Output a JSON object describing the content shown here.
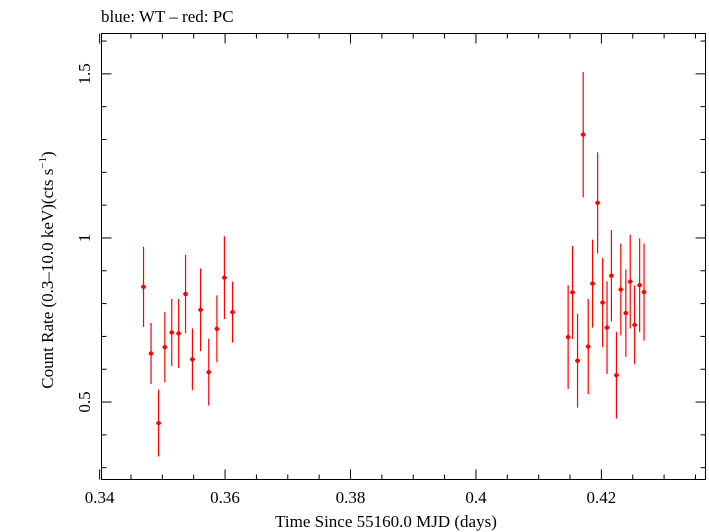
{
  "chart_data": {
    "type": "scatter",
    "title": "blue: WT – red: PC",
    "xlabel": "Time Since 55160.0 MJD (days)",
    "ylabel_main": "Count Rate (0.3–10.0 keV)(cts s",
    "ylabel_sup": "−1",
    "ylabel_close": ")",
    "xlim": [
      0.3403,
      0.4366
    ],
    "ylim": [
      0.264,
      1.623
    ],
    "x_major_ticks": [
      0.34,
      0.36,
      0.38,
      0.4,
      0.42
    ],
    "x_tick_labels": [
      "0.34",
      "0.36",
      "0.38",
      "0.4",
      "0.42"
    ],
    "y_major_ticks": [
      0.5,
      1.0,
      1.5
    ],
    "y_tick_labels": [
      "0.5",
      "1",
      "1.5"
    ],
    "grid": false,
    "series": [
      {
        "color": "#ff0000",
        "points": [
          {
            "x": 0.347,
            "y": 0.851,
            "yerr": 0.122,
            "xerr": 0.0004
          },
          {
            "x": 0.3482,
            "y": 0.648,
            "yerr": 0.093,
            "xerr": 0.0004
          },
          {
            "x": 0.3494,
            "y": 0.436,
            "yerr": 0.102,
            "xerr": 0.0004
          },
          {
            "x": 0.3504,
            "y": 0.667,
            "yerr": 0.107,
            "xerr": 0.0004
          },
          {
            "x": 0.3515,
            "y": 0.712,
            "yerr": 0.102,
            "xerr": 0.0004
          },
          {
            "x": 0.3526,
            "y": 0.709,
            "yerr": 0.105,
            "xerr": 0.0004
          },
          {
            "x": 0.3537,
            "y": 0.829,
            "yerr": 0.119,
            "xerr": 0.0004
          },
          {
            "x": 0.3548,
            "y": 0.63,
            "yerr": 0.094,
            "xerr": 0.0004
          },
          {
            "x": 0.3561,
            "y": 0.781,
            "yerr": 0.126,
            "xerr": 0.0004
          },
          {
            "x": 0.3574,
            "y": 0.591,
            "yerr": 0.102,
            "xerr": 0.0004
          },
          {
            "x": 0.3587,
            "y": 0.723,
            "yerr": 0.102,
            "xerr": 0.0004
          },
          {
            "x": 0.3599,
            "y": 0.879,
            "yerr": 0.126,
            "xerr": 0.0004
          },
          {
            "x": 0.3612,
            "y": 0.774,
            "yerr": 0.093,
            "xerr": 0.0004
          },
          {
            "x": 0.4147,
            "y": 0.698,
            "yerr": 0.158,
            "xerr": 0.0004
          },
          {
            "x": 0.4154,
            "y": 0.834,
            "yerr": 0.142,
            "xerr": 0.0004
          },
          {
            "x": 0.4162,
            "y": 0.626,
            "yerr": 0.143,
            "xerr": 0.0004
          },
          {
            "x": 0.4171,
            "y": 1.315,
            "yerr": 0.191,
            "xerr": 0.0004
          },
          {
            "x": 0.4179,
            "y": 0.669,
            "yerr": 0.145,
            "xerr": 0.0004
          },
          {
            "x": 0.4186,
            "y": 0.861,
            "yerr": 0.134,
            "xerr": 0.0004
          },
          {
            "x": 0.4194,
            "y": 1.107,
            "yerr": 0.154,
            "xerr": 0.0004
          },
          {
            "x": 0.4202,
            "y": 0.803,
            "yerr": 0.136,
            "xerr": 0.0004
          },
          {
            "x": 0.4209,
            "y": 0.727,
            "yerr": 0.141,
            "xerr": 0.0004
          },
          {
            "x": 0.4216,
            "y": 0.885,
            "yerr": 0.139,
            "xerr": 0.0004
          },
          {
            "x": 0.4224,
            "y": 0.582,
            "yerr": 0.132,
            "xerr": 0.0004
          },
          {
            "x": 0.4231,
            "y": 0.843,
            "yerr": 0.14,
            "xerr": 0.0004
          },
          {
            "x": 0.4239,
            "y": 0.771,
            "yerr": 0.133,
            "xerr": 0.0004
          },
          {
            "x": 0.4246,
            "y": 0.867,
            "yerr": 0.143,
            "xerr": 0.0004
          },
          {
            "x": 0.4253,
            "y": 0.735,
            "yerr": 0.12,
            "xerr": 0.0004
          },
          {
            "x": 0.4261,
            "y": 0.856,
            "yerr": 0.143,
            "xerr": 0.0004
          },
          {
            "x": 0.4268,
            "y": 0.835,
            "yerr": 0.148,
            "xerr": 0.0004
          }
        ]
      }
    ]
  }
}
